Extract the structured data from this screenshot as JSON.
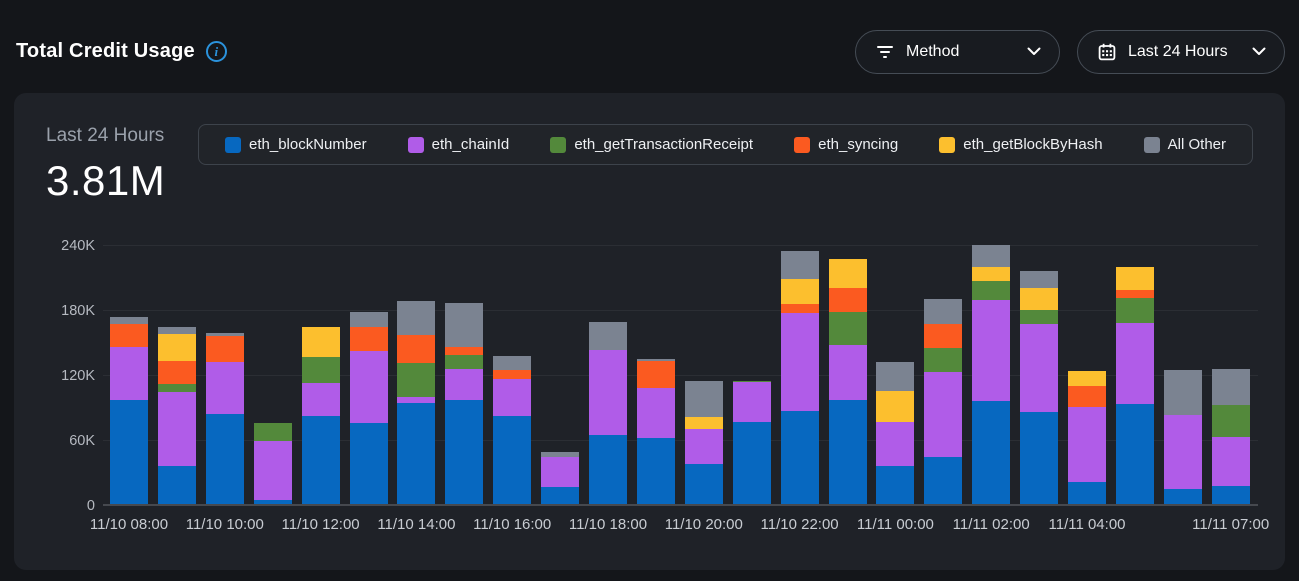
{
  "header": {
    "title": "Total Credit Usage",
    "filters": {
      "method": {
        "label": "Method",
        "icon": "filter-icon"
      },
      "time_range": {
        "label": "Last 24 Hours",
        "icon": "calendar-icon"
      }
    }
  },
  "card": {
    "summary": {
      "period_label": "Last 24 Hours",
      "total": "3.81M"
    }
  },
  "colors": {
    "page_bg": "#14161a",
    "card_bg": "#1f2228",
    "accent_info": "#2b93dd",
    "gridline": "#2b2e34",
    "axis_line": "#46494f"
  },
  "chart_data": {
    "type": "bar",
    "stacked": true,
    "title": "Total Credit Usage - Last 24 Hours",
    "total_label": "3.81M",
    "values_unit": "thousands of credits (K)",
    "ylim": [
      0,
      240000
    ],
    "y_ticks": [
      "0",
      "60K",
      "120K",
      "180K",
      "240K"
    ],
    "y_tick_values": [
      0,
      60,
      120,
      180,
      240
    ],
    "grid": true,
    "legend_position": "top",
    "bar_count": 24,
    "x_ticks": [
      {
        "bar_index": 0,
        "label": "11/10 08:00"
      },
      {
        "bar_index": 2,
        "label": "11/10 10:00"
      },
      {
        "bar_index": 4,
        "label": "11/10 12:00"
      },
      {
        "bar_index": 6,
        "label": "11/10 14:00"
      },
      {
        "bar_index": 8,
        "label": "11/10 16:00"
      },
      {
        "bar_index": 10,
        "label": "11/10 18:00"
      },
      {
        "bar_index": 12,
        "label": "11/10 20:00"
      },
      {
        "bar_index": 14,
        "label": "11/10 22:00"
      },
      {
        "bar_index": 16,
        "label": "11/11 00:00"
      },
      {
        "bar_index": 18,
        "label": "11/11 02:00"
      },
      {
        "bar_index": 20,
        "label": "11/11 04:00"
      },
      {
        "bar_index": 23,
        "label": "11/11 07:00"
      }
    ],
    "series": [
      {
        "name": "eth_blockNumber",
        "color": "#0768c0",
        "values": [
          96,
          35,
          83,
          4,
          81,
          75,
          93,
          96,
          81,
          16,
          64,
          61,
          37,
          76,
          86,
          96,
          35,
          43,
          95,
          85,
          20,
          92,
          14,
          17
        ]
      },
      {
        "name": "eth_chainId",
        "color": "#b05ce8",
        "values": [
          49,
          68,
          48,
          54,
          31,
          66,
          6,
          29,
          34,
          27,
          78,
          46,
          32,
          37,
          90,
          51,
          41,
          79,
          93,
          81,
          70,
          75,
          68,
          45
        ]
      },
      {
        "name": "eth_getTransactionReceipt",
        "color": "#53893b",
        "values": [
          0,
          8,
          0,
          17,
          24,
          0,
          31,
          13,
          0,
          0,
          0,
          0,
          0,
          1,
          0,
          30,
          0,
          22,
          18,
          13,
          0,
          23,
          0,
          29
        ]
      },
      {
        "name": "eth_syncing",
        "color": "#fb5a20",
        "values": [
          21,
          21,
          24,
          0,
          0,
          22,
          26,
          7,
          9,
          0,
          0,
          25,
          0,
          0,
          9,
          22,
          0,
          22,
          0,
          0,
          19,
          8,
          0,
          0
        ]
      },
      {
        "name": "eth_getBlockByHash",
        "color": "#fcbf2e",
        "values": [
          0,
          25,
          0,
          0,
          27,
          0,
          0,
          0,
          0,
          0,
          0,
          0,
          11,
          0,
          23,
          27,
          28,
          0,
          13,
          20,
          14,
          21,
          0,
          0
        ]
      },
      {
        "name": "All Other",
        "color": "#7b8391",
        "values": [
          7,
          6,
          3,
          0,
          0,
          14,
          31,
          41,
          13,
          5,
          26,
          2,
          34,
          0,
          26,
          0,
          27,
          23,
          20,
          16,
          0,
          0,
          42,
          34
        ]
      }
    ]
  }
}
